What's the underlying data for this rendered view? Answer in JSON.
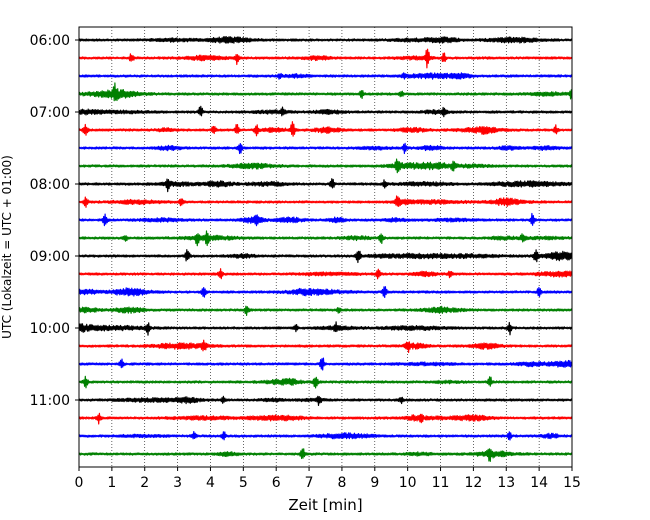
{
  "chart_data": {
    "type": "line",
    "subtype": "helicorder",
    "title": "",
    "xlabel": "Zeit  [min]",
    "ylabel": "UTC (Lokalzeit = UTC + 01:00)",
    "xlim": [
      0,
      15
    ],
    "x_ticks": [
      "0",
      "1",
      "2",
      "3",
      "4",
      "5",
      "6",
      "7",
      "8",
      "9",
      "10",
      "11",
      "12",
      "13",
      "14",
      "15"
    ],
    "y_ticks": [
      "06:00",
      "07:00",
      "08:00",
      "09:00",
      "10:00",
      "11:00"
    ],
    "rows_per_hour": 4,
    "minutes_per_row": 15,
    "trace_colors": [
      "#000000",
      "#ff0000",
      "#0000ff",
      "#008000"
    ],
    "vertical_grid": "dotted",
    "series": [
      {
        "start": "06:00",
        "events": []
      },
      {
        "start": "06:15",
        "events": [
          [
            1.6,
            0.5
          ],
          [
            4.8,
            0.6
          ],
          [
            10.6,
            1.0
          ],
          [
            11.1,
            0.5
          ]
        ]
      },
      {
        "start": "06:30",
        "events": [
          [
            6.1,
            0.3
          ],
          [
            9.9,
            0.3
          ]
        ]
      },
      {
        "start": "06:45",
        "events": [
          [
            1.1,
            0.8
          ],
          [
            8.6,
            0.4
          ],
          [
            9.8,
            0.3
          ],
          [
            15.0,
            0.9
          ]
        ]
      },
      {
        "start": "07:00",
        "events": [
          [
            3.7,
            0.6
          ],
          [
            6.2,
            0.4
          ],
          [
            11.1,
            0.3
          ]
        ]
      },
      {
        "start": "07:15",
        "events": [
          [
            0.2,
            0.7
          ],
          [
            4.1,
            0.5
          ],
          [
            4.8,
            0.6
          ],
          [
            5.4,
            0.7
          ],
          [
            6.5,
            0.9
          ],
          [
            14.5,
            0.5
          ]
        ]
      },
      {
        "start": "07:30",
        "events": [
          [
            4.9,
            0.6
          ],
          [
            9.9,
            0.5
          ]
        ]
      },
      {
        "start": "07:45",
        "events": [
          [
            9.7,
            0.7
          ],
          [
            11.4,
            0.4
          ]
        ]
      },
      {
        "start": "08:00",
        "events": [
          [
            2.7,
            0.7
          ],
          [
            7.7,
            0.6
          ],
          [
            9.3,
            0.4
          ]
        ]
      },
      {
        "start": "08:15",
        "events": [
          [
            0.2,
            0.6
          ],
          [
            3.1,
            0.5
          ],
          [
            9.7,
            0.6
          ]
        ]
      },
      {
        "start": "08:30",
        "events": [
          [
            0.8,
            0.7
          ],
          [
            5.4,
            0.5
          ],
          [
            13.8,
            0.7
          ]
        ]
      },
      {
        "start": "08:45",
        "events": [
          [
            1.4,
            0.4
          ],
          [
            3.6,
            0.6
          ],
          [
            3.9,
            0.6
          ],
          [
            9.2,
            0.7
          ],
          [
            13.5,
            0.3
          ]
        ]
      },
      {
        "start": "09:00",
        "events": [
          [
            3.3,
            0.7
          ],
          [
            8.5,
            0.8
          ],
          [
            13.9,
            0.7
          ]
        ]
      },
      {
        "start": "09:15",
        "events": [
          [
            4.3,
            0.6
          ],
          [
            9.1,
            0.5
          ],
          [
            11.3,
            0.4
          ]
        ]
      },
      {
        "start": "09:30",
        "events": [
          [
            3.8,
            0.6
          ],
          [
            9.3,
            0.6
          ],
          [
            14.0,
            0.5
          ]
        ]
      },
      {
        "start": "09:45",
        "events": [
          [
            5.1,
            0.6
          ],
          [
            7.9,
            0.4
          ]
        ]
      },
      {
        "start": "10:00",
        "events": [
          [
            2.1,
            0.7
          ],
          [
            6.6,
            0.3
          ],
          [
            7.8,
            0.5
          ],
          [
            13.1,
            0.7
          ]
        ]
      },
      {
        "start": "10:15",
        "events": [
          [
            3.8,
            0.6
          ],
          [
            10.0,
            0.6
          ]
        ]
      },
      {
        "start": "10:30",
        "events": [
          [
            1.3,
            0.5
          ],
          [
            7.4,
            0.8
          ]
        ]
      },
      {
        "start": "10:45",
        "events": [
          [
            0.2,
            0.6
          ],
          [
            7.2,
            0.6
          ],
          [
            12.5,
            0.6
          ]
        ]
      },
      {
        "start": "11:00",
        "events": [
          [
            4.4,
            0.4
          ],
          [
            7.3,
            0.6
          ],
          [
            9.8,
            0.3
          ]
        ]
      },
      {
        "start": "11:15",
        "events": [
          [
            0.6,
            0.6
          ],
          [
            10.4,
            0.5
          ]
        ]
      },
      {
        "start": "11:30",
        "events": [
          [
            3.5,
            0.4
          ],
          [
            4.4,
            0.5
          ],
          [
            13.1,
            0.4
          ]
        ]
      },
      {
        "start": "11:45",
        "events": [
          [
            6.8,
            0.7
          ],
          [
            12.5,
            0.6
          ]
        ]
      }
    ]
  }
}
